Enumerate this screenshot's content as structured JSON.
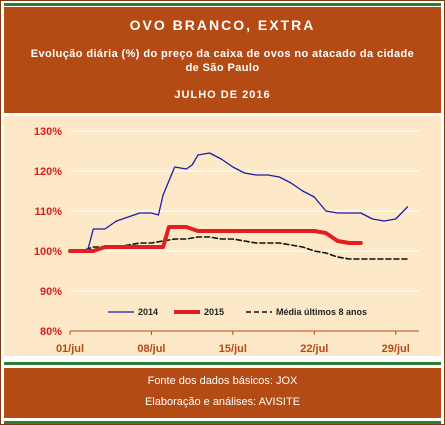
{
  "header": {
    "title": "OVO BRANCO, EXTRA",
    "subtitle": "Evolução diária (%) do preço da caixa de ovos no atacado da cidade de São Paulo",
    "period": "JULHO DE 2016"
  },
  "footer": {
    "source": "Fonte dos dados básicos: JOX",
    "credit": "Elaboração e análises: AVISITE"
  },
  "colors": {
    "background_plot": "#fde9c8",
    "header": "#b44a14",
    "series_2014": "#1c1ca8",
    "series_2015": "#e02020",
    "series_avg": "#111111"
  },
  "chart_data": {
    "type": "line",
    "x_ticks": [
      "01/jul",
      "08/jul",
      "15/jul",
      "22/jul",
      "29/jul"
    ],
    "y_ticks": [
      "80%",
      "90%",
      "100%",
      "110%",
      "120%",
      "130%"
    ],
    "ylim": [
      80,
      130
    ],
    "xlim": [
      1,
      31
    ],
    "grid": "horizontal",
    "legend_position": "bottom",
    "series": [
      {
        "name": "2014",
        "style": "thin-solid",
        "x": [
          1,
          2,
          2.5,
          3,
          4,
          5,
          6,
          7,
          8,
          8.6,
          9,
          10,
          11,
          11.5,
          12,
          13,
          14,
          15,
          16,
          17,
          18,
          19,
          20,
          21,
          22,
          23,
          24,
          25,
          26,
          27,
          28,
          29,
          30
        ],
        "values": [
          100,
          100,
          100,
          105.5,
          105.5,
          107.5,
          108.5,
          109.5,
          109.5,
          109,
          114,
          121,
          120.5,
          121.5,
          124,
          124.5,
          123,
          121,
          119.5,
          119,
          119,
          118.5,
          117,
          115,
          113.5,
          110,
          109.5,
          109.5,
          109.5,
          108,
          107.5,
          108,
          111
        ]
      },
      {
        "name": "2015",
        "style": "thick-solid",
        "x": [
          1,
          2,
          3,
          4,
          5,
          6,
          7,
          8,
          9,
          9.5,
          10,
          11,
          12,
          13,
          14,
          15,
          16,
          17,
          18,
          19,
          20,
          21,
          22,
          23,
          24,
          25,
          26
        ],
        "values": [
          100,
          100,
          100,
          101,
          101,
          101,
          101,
          101,
          101,
          106,
          106,
          106,
          105,
          105,
          105,
          105,
          105,
          105,
          105,
          105,
          105,
          105,
          105,
          104.5,
          102.5,
          102,
          102
        ]
      },
      {
        "name": "Média últimos 8 anos",
        "style": "dashed",
        "x": [
          1,
          2,
          3,
          4,
          5,
          6,
          7,
          8,
          9,
          10,
          11,
          12,
          13,
          14,
          15,
          16,
          17,
          18,
          19,
          20,
          21,
          22,
          23,
          24,
          25,
          26,
          27,
          28,
          29,
          30
        ],
        "values": [
          100,
          100,
          101,
          101,
          101,
          101.5,
          102,
          102,
          102.5,
          103,
          103,
          103.5,
          103.5,
          103,
          103,
          102.5,
          102,
          102,
          102,
          101.5,
          101,
          100,
          99.5,
          98.5,
          98,
          98,
          98,
          98,
          98,
          98
        ]
      }
    ]
  }
}
